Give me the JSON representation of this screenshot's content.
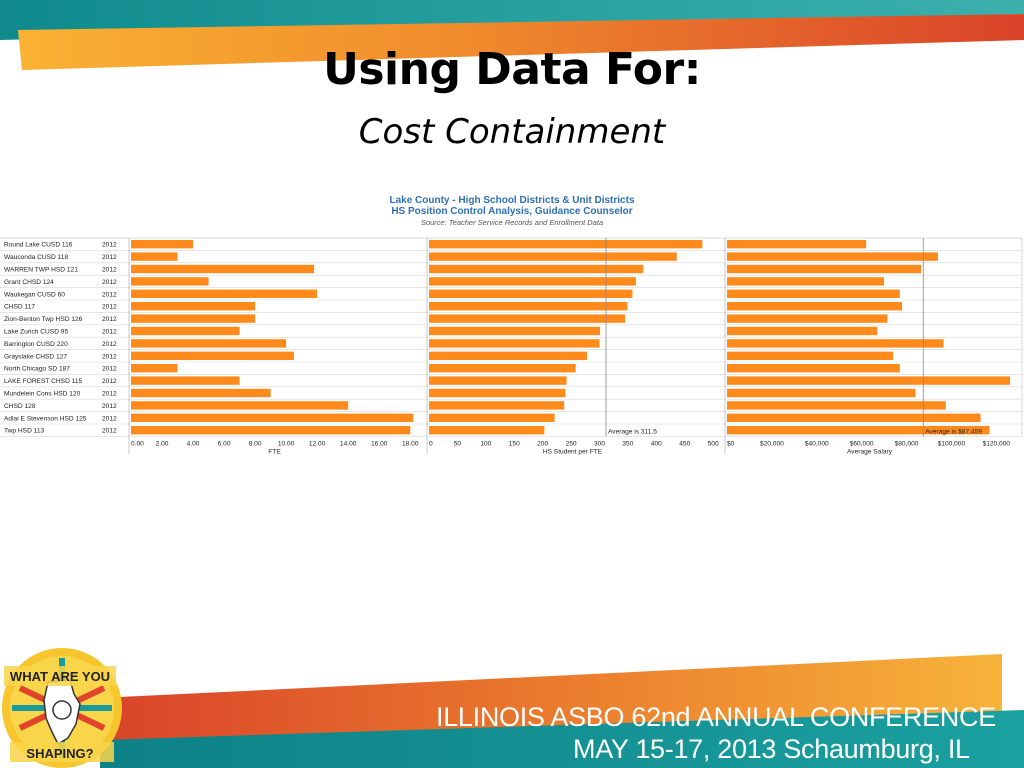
{
  "slide": {
    "title": "Using Data For:",
    "subtitle": "Cost Containment",
    "conference_line1": "ILLINOIS ASBO 62nd ANNUAL CONFERENCE",
    "conference_line2": "MAY 15-17, 2013 Schaumburg, IL",
    "logo_text_top": "WHAT ARE YOU",
    "logo_text_bottom": "SHAPING?",
    "colors": {
      "orange": "#f7941d",
      "teal": "#1a9b9b",
      "bar": "#ff8a1c"
    }
  },
  "chart_data": {
    "type": "bar",
    "orientation": "horizontal",
    "title": "Lake County - High School Districts & Unit Districts",
    "subtitle": "HS Position Control Analysis,    Guidance Counselor",
    "source": "Source: Teacher Service Records and Enrollment Data",
    "categories": [
      "Round Lake CUSD 116",
      "Wauconda CUSD 118",
      "WARREN TWP HSD 121",
      "Grant CHSD 124",
      "Waukegan CUSD 60",
      "CHSD 117",
      "Zion-Benton Twp HSD 126",
      "Lake Zurich CUSD 95",
      "Barrington CUSD 220",
      "Grayslake CHSD 127",
      "North Chicago SD 187",
      "LAKE FOREST CHSD 115",
      "Mundelein Cons HSD 120",
      "CHSD 128",
      "Adlai E Stevenson HSD 125",
      "Twp HSD 113"
    ],
    "year": "2012",
    "panels": [
      {
        "xlabel": "FTE",
        "ticks": [
          "0.00",
          "2.00",
          "4.00",
          "6.00",
          "8.00",
          "10.00",
          "12.00",
          "14.00",
          "16.00",
          "18.00"
        ],
        "xlim": [
          0,
          18.5
        ],
        "values": [
          4.0,
          3.0,
          11.8,
          5.0,
          12.0,
          8.0,
          8.0,
          7.0,
          10.0,
          10.5,
          3.0,
          7.0,
          9.0,
          14.0,
          18.2,
          18.0
        ]
      },
      {
        "xlabel": "HS Student per FTE",
        "ticks": [
          "0",
          "50",
          "100",
          "150",
          "200",
          "250",
          "300",
          "350",
          "400",
          "450",
          "500"
        ],
        "xlim": [
          0,
          505
        ],
        "average": 311.5,
        "average_label": "Average is 311.5",
        "values": [
          481,
          436,
          377,
          364,
          358,
          349,
          345,
          301,
          300,
          278,
          258,
          242,
          240,
          238,
          221,
          203
        ]
      },
      {
        "xlabel": "Average Salary",
        "ticks": [
          "$0",
          "$20,000",
          "$40,000",
          "$60,000",
          "$80,000",
          "$100,000",
          "$120,000"
        ],
        "xlim": [
          0,
          127000
        ],
        "average": 87459,
        "average_label": "Average is $87,459",
        "values": [
          62000,
          94000,
          86500,
          70000,
          77000,
          78000,
          71500,
          67000,
          96500,
          74000,
          77000,
          129000,
          84000,
          97500,
          113000,
          117000
        ]
      }
    ]
  }
}
